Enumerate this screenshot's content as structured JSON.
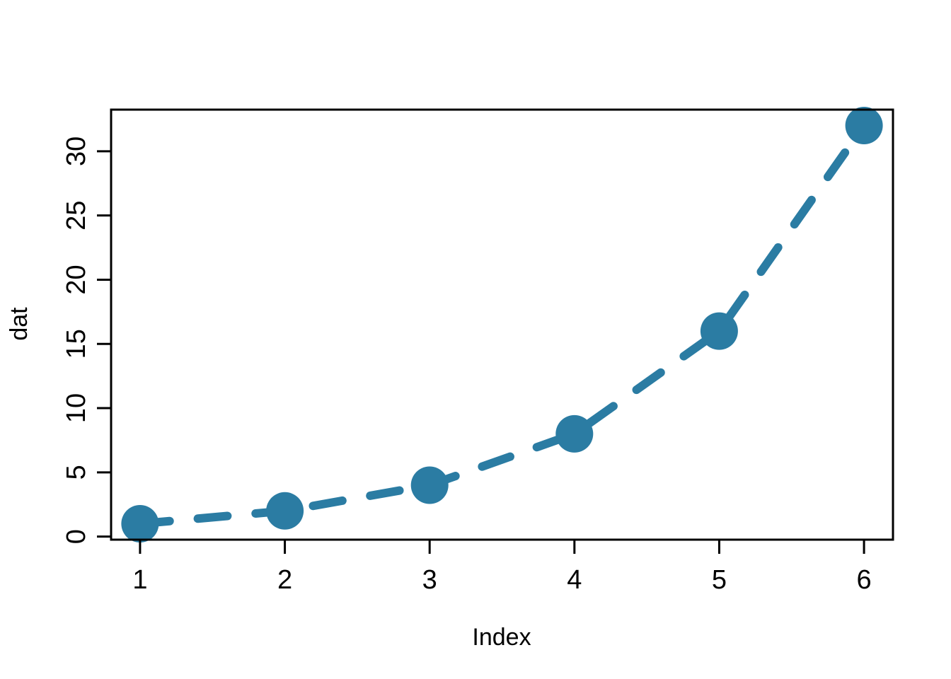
{
  "figure": {
    "background": "#ffffff",
    "axis_color": "#000000",
    "accent_color": "#2b7ca3"
  },
  "chart_data": {
    "type": "line",
    "title": "",
    "xlabel": "Index",
    "ylabel": "dat",
    "x": [
      1,
      2,
      3,
      4,
      5,
      6
    ],
    "y": [
      1,
      2,
      4,
      8,
      16,
      32
    ],
    "series": [
      {
        "name": "dat",
        "x": [
          1,
          2,
          3,
          4,
          5,
          6
        ],
        "values": [
          1,
          2,
          4,
          8,
          16,
          32
        ]
      }
    ],
    "x_tick_labels": [
      "1",
      "2",
      "3",
      "4",
      "5",
      "6"
    ],
    "x_tick_values": [
      1,
      2,
      3,
      4,
      5,
      6
    ],
    "y_tick_labels": [
      "0",
      "5",
      "10",
      "15",
      "20",
      "25",
      "30"
    ],
    "y_tick_values": [
      0,
      5,
      10,
      15,
      20,
      25,
      30
    ],
    "xlim": [
      0.8,
      6.2
    ],
    "ylim": [
      -0.24,
      33.24
    ],
    "grid": false,
    "legend": false,
    "marker": "filled-circle",
    "line_style": "dashed",
    "line_color": "#2b7ca3",
    "marker_color": "#2b7ca3"
  }
}
